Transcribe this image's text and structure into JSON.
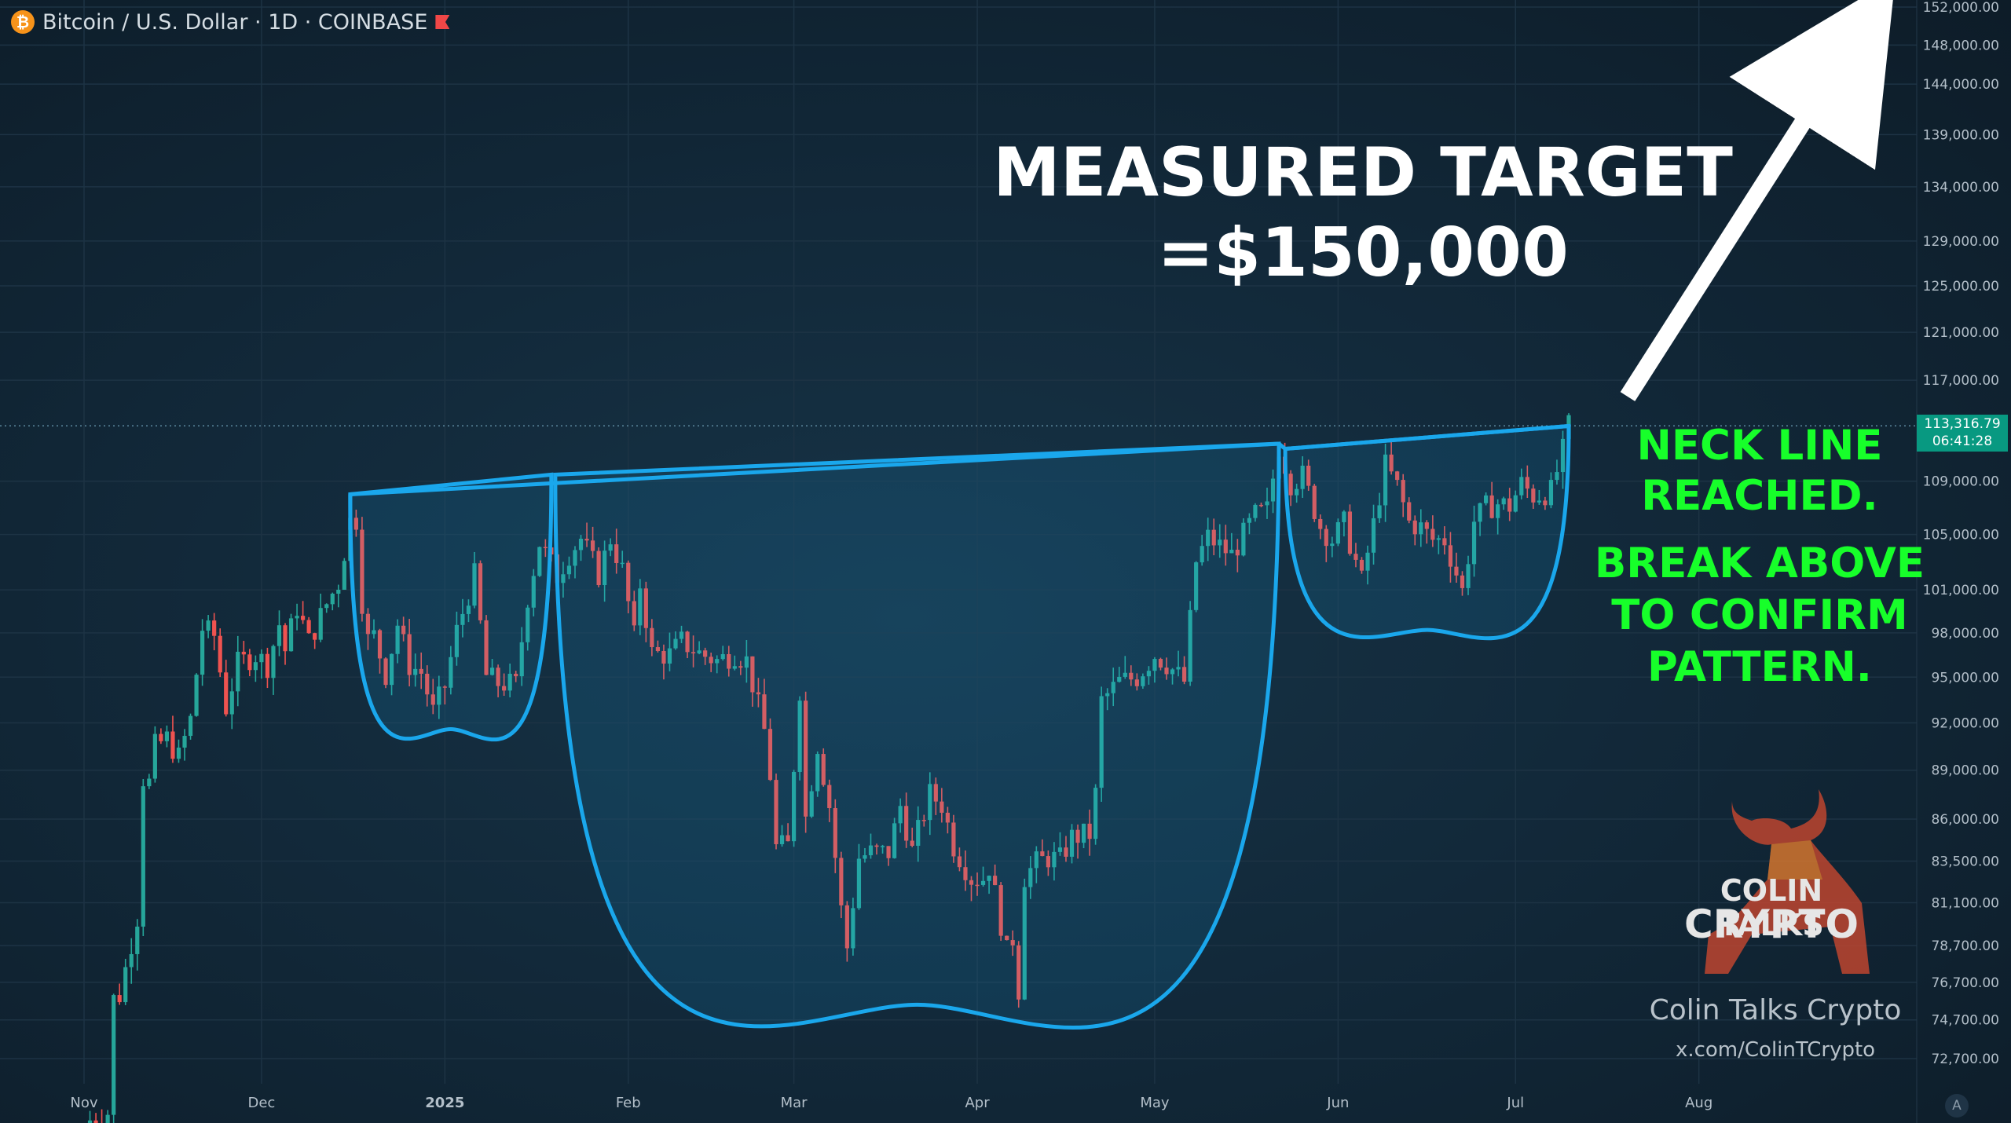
{
  "header": {
    "symbol_line": "Bitcoin / U.S. Dollar · 1D · COINBASE",
    "coin_glyph": "₿",
    "icons": [
      "bitcoin-icon",
      "flag-icon"
    ]
  },
  "annotations": {
    "target_line1": "MEASURED TARGET",
    "target_line2": "=$150,000",
    "neck_line1": "NECK LINE",
    "neck_line2": "REACHED.",
    "break_line1": "BREAK ABOVE",
    "break_line2": "TO CONFIRM",
    "break_line3": "PATTERN."
  },
  "price_tag": {
    "price": "113,316.79",
    "countdown": "06:41:28"
  },
  "watermark": {
    "logo_line1": "COLIN TALKS",
    "logo_line2": "CRYPTO",
    "name": "Colin Talks Crypto",
    "handle": "x.com/ColinTCrypto"
  },
  "chart_mode_glyph": "A",
  "colors": {
    "up": "#26a69a",
    "down": "#ef5350",
    "pattern": "#1aa7ec",
    "callout": "#17ff2a",
    "tag": "#089981"
  },
  "chart_data": {
    "type": "candlestick",
    "timeframe": "1D",
    "exchange": "COINBASE",
    "x_ticks": [
      "Nov",
      "Dec",
      "2025",
      "Feb",
      "Mar",
      "Apr",
      "May",
      "Jun",
      "Jul",
      "Aug"
    ],
    "y_ticks": [
      152000,
      148000,
      144000,
      139000,
      134000,
      129000,
      125000,
      121000,
      117000,
      109000,
      105000,
      101000,
      98000,
      95000,
      92000,
      89000,
      86000,
      83500,
      81100,
      78700,
      76700,
      74700,
      72700
    ],
    "y_tick_labels": [
      "152,000.00",
      "148,000.00",
      "144,000.00",
      "139,000.00",
      "134,000.00",
      "129,000.00",
      "125,000.00",
      "121,000.00",
      "117,000.00",
      "109,000.00",
      "105,000.00",
      "101,000.00",
      "98,000.00",
      "95,000.00",
      "92,000.00",
      "89,000.00",
      "86,000.00",
      "83,500.00",
      "81,100.00",
      "78,700.00",
      "76,700.00",
      "74,700.00",
      "72,700.00"
    ],
    "scale": "log",
    "last_price": 113316.79,
    "target_price": 150000,
    "closes": [
      [
        "2024-11-01",
        69500
      ],
      [
        "2024-11-05",
        70000
      ],
      [
        "2024-11-06",
        75800
      ],
      [
        "2024-11-07",
        76000
      ],
      [
        "2024-11-10",
        80300
      ],
      [
        "2024-11-11",
        88500
      ],
      [
        "2024-11-12",
        88200
      ],
      [
        "2024-11-13",
        90500
      ],
      [
        "2024-11-15",
        91000
      ],
      [
        "2024-11-17",
        89800
      ],
      [
        "2024-11-19",
        92200
      ],
      [
        "2024-11-21",
        98300
      ],
      [
        "2024-11-23",
        97800
      ],
      [
        "2024-11-25",
        93000
      ],
      [
        "2024-11-27",
        95900
      ],
      [
        "2024-11-30",
        96500
      ],
      [
        "2024-12-02",
        95800
      ],
      [
        "2024-12-04",
        98600
      ],
      [
        "2024-12-05",
        96800
      ],
      [
        "2024-12-07",
        99800
      ],
      [
        "2024-12-09",
        97400
      ],
      [
        "2024-12-12",
        100000
      ],
      [
        "2024-12-14",
        101500
      ],
      [
        "2024-12-16",
        106000
      ],
      [
        "2024-12-17",
        106100
      ],
      [
        "2024-12-18",
        100200
      ],
      [
        "2024-12-19",
        97500
      ],
      [
        "2024-12-20",
        97800
      ],
      [
        "2024-12-22",
        95200
      ],
      [
        "2024-12-24",
        98600
      ],
      [
        "2024-12-26",
        95800
      ],
      [
        "2024-12-28",
        95300
      ],
      [
        "2024-12-30",
        92700
      ],
      [
        "2025-01-01",
        94400
      ],
      [
        "2025-01-03",
        98100
      ],
      [
        "2025-01-06",
        102000
      ],
      [
        "2025-01-08",
        95100
      ],
      [
        "2025-01-10",
        94600
      ],
      [
        "2025-01-13",
        94500
      ],
      [
        "2025-01-15",
        100500
      ],
      [
        "2025-01-17",
        104400
      ],
      [
        "2025-01-20",
        102000
      ],
      [
        "2025-01-22",
        103600
      ],
      [
        "2025-01-24",
        104700
      ],
      [
        "2025-01-27",
        102100
      ],
      [
        "2025-01-29",
        104700
      ],
      [
        "2025-01-31",
        102400
      ],
      [
        "2025-02-02",
        97700
      ],
      [
        "2025-02-03",
        101400
      ],
      [
        "2025-02-05",
        96600
      ],
      [
        "2025-02-08",
        96500
      ],
      [
        "2025-02-10",
        97400
      ],
      [
        "2025-02-13",
        96600
      ],
      [
        "2025-02-16",
        96100
      ],
      [
        "2025-02-19",
        96600
      ],
      [
        "2025-02-21",
        96100
      ],
      [
        "2025-02-24",
        91500
      ],
      [
        "2025-02-25",
        88700
      ],
      [
        "2025-02-26",
        84300
      ],
      [
        "2025-02-28",
        84400
      ],
      [
        "2025-03-02",
        94200
      ],
      [
        "2025-03-03",
        86100
      ],
      [
        "2025-03-05",
        90600
      ],
      [
        "2025-03-07",
        86800
      ],
      [
        "2025-03-09",
        80700
      ],
      [
        "2025-03-10",
        78600
      ],
      [
        "2025-03-12",
        83700
      ],
      [
        "2025-03-14",
        84000
      ],
      [
        "2025-03-17",
        84000
      ],
      [
        "2025-03-19",
        86800
      ],
      [
        "2025-03-21",
        84100
      ],
      [
        "2025-03-24",
        87500
      ],
      [
        "2025-03-26",
        86900
      ],
      [
        "2025-03-28",
        84400
      ],
      [
        "2025-03-31",
        82500
      ],
      [
        "2025-04-02",
        82500
      ],
      [
        "2025-04-03",
        83200
      ],
      [
        "2025-04-06",
        78300
      ],
      [
        "2025-04-07",
        79100
      ],
      [
        "2025-04-08",
        76300
      ],
      [
        "2025-04-09",
        82600
      ],
      [
        "2025-04-11",
        83400
      ],
      [
        "2025-04-13",
        83700
      ],
      [
        "2025-04-15",
        83600
      ],
      [
        "2025-04-17",
        84900
      ],
      [
        "2025-04-20",
        85100
      ],
      [
        "2025-04-21",
        87500
      ],
      [
        "2025-04-22",
        93400
      ],
      [
        "2025-04-25",
        94700
      ],
      [
        "2025-04-28",
        95000
      ],
      [
        "2025-05-01",
        96500
      ],
      [
        "2025-05-03",
        95900
      ],
      [
        "2025-05-06",
        94700
      ],
      [
        "2025-05-08",
        103000
      ],
      [
        "2025-05-10",
        104800
      ],
      [
        "2025-05-14",
        103500
      ],
      [
        "2025-05-18",
        106400
      ],
      [
        "2025-05-20",
        106800
      ],
      [
        "2025-05-22",
        111700
      ],
      [
        "2025-05-24",
        108900
      ],
      [
        "2025-05-26",
        109400
      ],
      [
        "2025-05-29",
        105600
      ],
      [
        "2025-05-31",
        104600
      ],
      [
        "2025-06-02",
        105800
      ],
      [
        "2025-06-05",
        101600
      ],
      [
        "2025-06-07",
        105700
      ],
      [
        "2025-06-09",
        110200
      ],
      [
        "2025-06-11",
        108600
      ],
      [
        "2025-06-13",
        105900
      ],
      [
        "2025-06-15",
        105500
      ],
      [
        "2025-06-17",
        104600
      ],
      [
        "2025-06-19",
        104600
      ],
      [
        "2025-06-21",
        102200
      ],
      [
        "2025-06-22",
        100900
      ],
      [
        "2025-06-24",
        106000
      ],
      [
        "2025-06-26",
        107000
      ],
      [
        "2025-06-28",
        107300
      ],
      [
        "2025-06-30",
        107100
      ],
      [
        "2025-07-02",
        108800
      ],
      [
        "2025-07-04",
        107900
      ],
      [
        "2025-07-07",
        108200
      ],
      [
        "2025-07-09",
        111300
      ],
      [
        "2025-07-10",
        113316.79
      ]
    ],
    "pattern": "cup and handle (double)",
    "neckline": [
      [
        "2024-12-16",
        108000
      ],
      [
        "2025-05-22",
        111900
      ],
      [
        "2025-07-10",
        113300
      ]
    ]
  }
}
